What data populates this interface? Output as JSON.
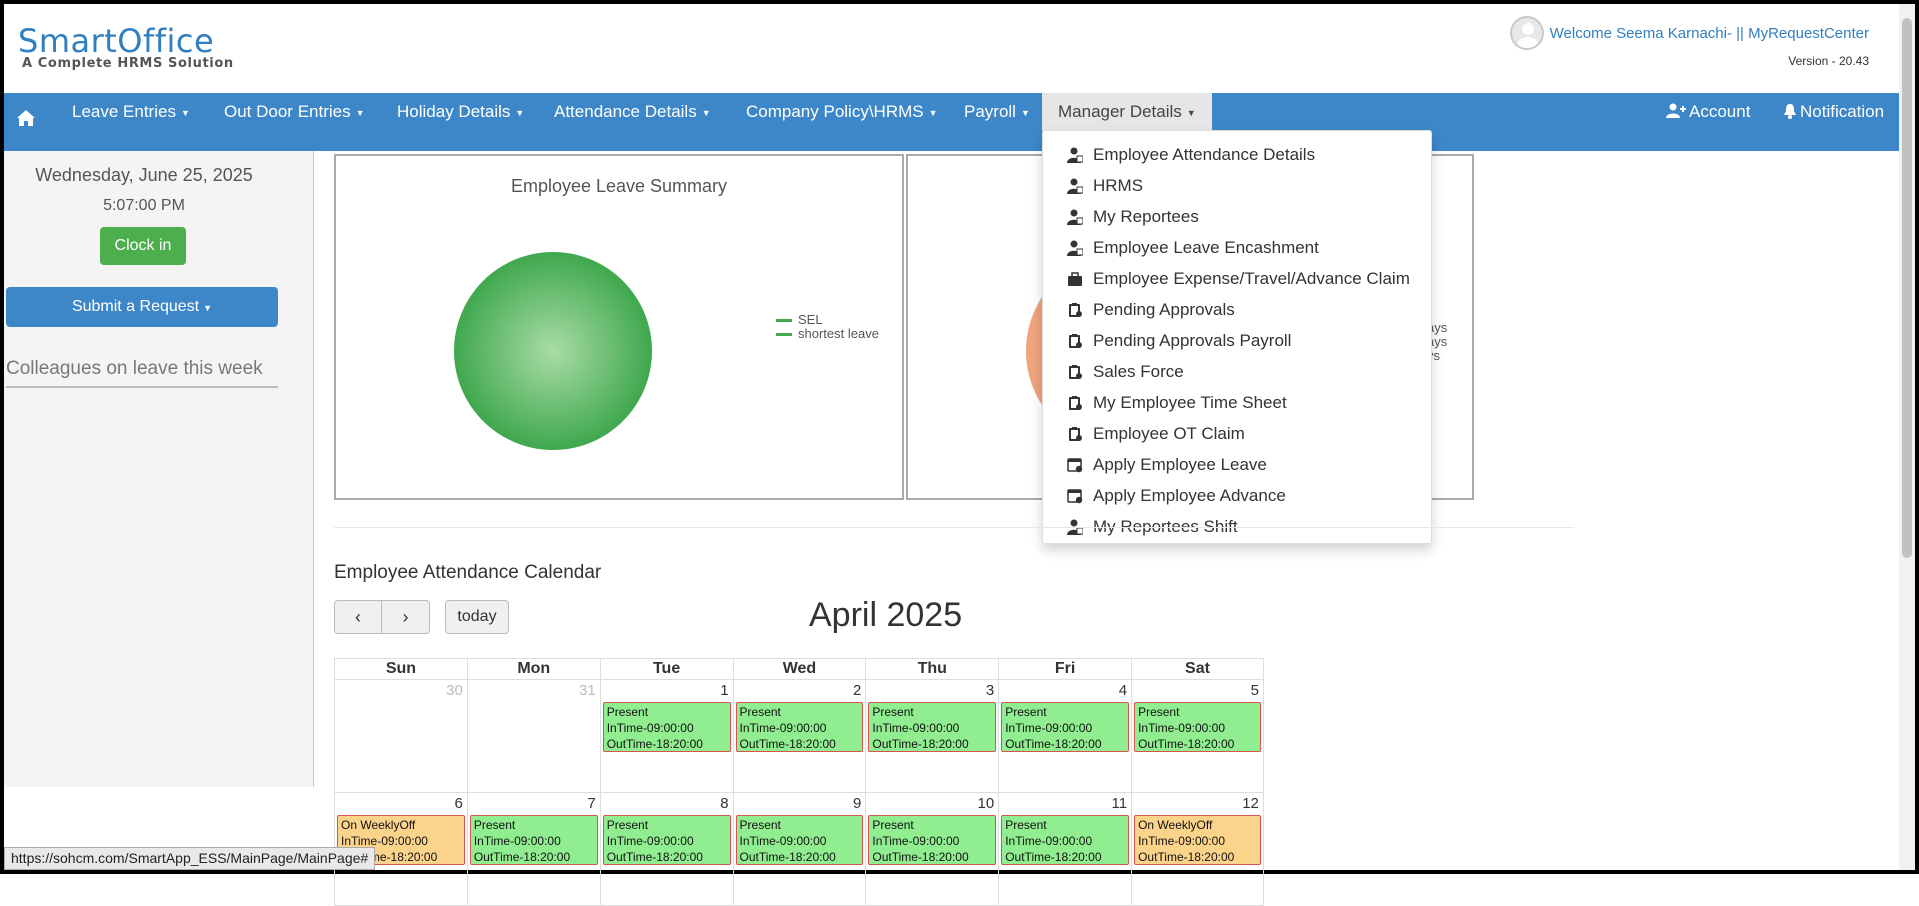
{
  "header": {
    "brand": "SmartOffice",
    "tagline": "A Complete HRMS Solution",
    "welcome": "Welcome Seema Karnachi- || MyRequestCenter",
    "version": "Version - 20.43"
  },
  "nav": {
    "items": [
      {
        "label": "Leave Entries"
      },
      {
        "label": "Out Door Entries"
      },
      {
        "label": "Holiday Details"
      },
      {
        "label": "Attendance Details"
      },
      {
        "label": "Company Policy\\HRMS"
      },
      {
        "label": "Payroll"
      },
      {
        "label": "Manager Details"
      }
    ],
    "account": "Account",
    "notification": "Notification"
  },
  "left": {
    "date": "Wednesday, June 25, 2025",
    "time": "5:07:00 PM",
    "clock_in": "Clock in",
    "submit_request": "Submit a Request",
    "colleagues_title": "Colleagues on leave this week"
  },
  "chart": {
    "title": "Employee Leave Summary",
    "legend": [
      "SEL",
      "shortest leave"
    ],
    "legend2_partial": [
      "ays",
      "ays",
      "ys"
    ],
    "colors": {
      "pie": "#3fa84e",
      "pie2": "#f0a57e"
    }
  },
  "chart_data": {
    "type": "pie",
    "title": "Employee Leave Summary",
    "series": [
      {
        "name": "SEL",
        "values": [
          1
        ]
      },
      {
        "name": "shortest leave",
        "values": [
          0
        ]
      }
    ]
  },
  "dropdown": {
    "items": [
      {
        "label": "Employee Attendance Details",
        "icon": "user-icon"
      },
      {
        "label": "HRMS",
        "icon": "user-icon"
      },
      {
        "label": "My Reportees",
        "icon": "user-icon"
      },
      {
        "label": "Employee Leave Encashment",
        "icon": "user-icon"
      },
      {
        "label": "Employee Expense/Travel/Advance Claim",
        "icon": "briefcase-icon"
      },
      {
        "label": "Pending Approvals",
        "icon": "clipboard-icon"
      },
      {
        "label": "Pending Approvals Payroll",
        "icon": "clipboard-icon"
      },
      {
        "label": "Sales Force",
        "icon": "clipboard-icon"
      },
      {
        "label": "My Employee Time Sheet",
        "icon": "clipboard-icon"
      },
      {
        "label": "Employee OT Claim",
        "icon": "clipboard-icon"
      },
      {
        "label": "Apply Employee Leave",
        "icon": "calendar-icon"
      },
      {
        "label": "Apply Employee Advance",
        "icon": "calendar-icon"
      },
      {
        "label": "My Reportees Shift",
        "icon": "user-icon"
      }
    ]
  },
  "calendar": {
    "section_title": "Employee Attendance Calendar",
    "today": "today",
    "month": "April 2025",
    "weekdays": [
      "Sun",
      "Mon",
      "Tue",
      "Wed",
      "Thu",
      "Fri",
      "Sat"
    ],
    "rows": [
      [
        {
          "day": "30",
          "other": true
        },
        {
          "day": "31",
          "other": true
        },
        {
          "day": "1",
          "status": "Present",
          "in": "InTime-09:00:00",
          "out": "OutTime-18:20:00",
          "kind": "present"
        },
        {
          "day": "2",
          "status": "Present",
          "in": "InTime-09:00:00",
          "out": "OutTime-18:20:00",
          "kind": "present"
        },
        {
          "day": "3",
          "status": "Present",
          "in": "InTime-09:00:00",
          "out": "OutTime-18:20:00",
          "kind": "present"
        },
        {
          "day": "4",
          "status": "Present",
          "in": "InTime-09:00:00",
          "out": "OutTime-18:20:00",
          "kind": "present"
        },
        {
          "day": "5",
          "status": "Present",
          "in": "InTime-09:00:00",
          "out": "OutTime-18:20:00",
          "kind": "present"
        }
      ],
      [
        {
          "day": "6",
          "status": "On WeeklyOff",
          "in": "InTime-09:00:00",
          "out": "OutTime-18:20:00",
          "kind": "off"
        },
        {
          "day": "7",
          "status": "Present",
          "in": "InTime-09:00:00",
          "out": "OutTime-18:20:00",
          "kind": "present"
        },
        {
          "day": "8",
          "status": "Present",
          "in": "InTime-09:00:00",
          "out": "OutTime-18:20:00",
          "kind": "present"
        },
        {
          "day": "9",
          "status": "Present",
          "in": "InTime-09:00:00",
          "out": "OutTime-18:20:00",
          "kind": "present"
        },
        {
          "day": "10",
          "status": "Present",
          "in": "InTime-09:00:00",
          "out": "OutTime-18:20:00",
          "kind": "present"
        },
        {
          "day": "11",
          "status": "Present",
          "in": "InTime-09:00:00",
          "out": "OutTime-18:20:00",
          "kind": "present"
        },
        {
          "day": "12",
          "status": "On WeeklyOff",
          "in": "InTime-09:00:00",
          "out": "OutTime-18:20:00",
          "kind": "off"
        }
      ]
    ]
  },
  "status_url": "https://sohcm.com/SmartApp_ESS/MainPage/MainPage#"
}
